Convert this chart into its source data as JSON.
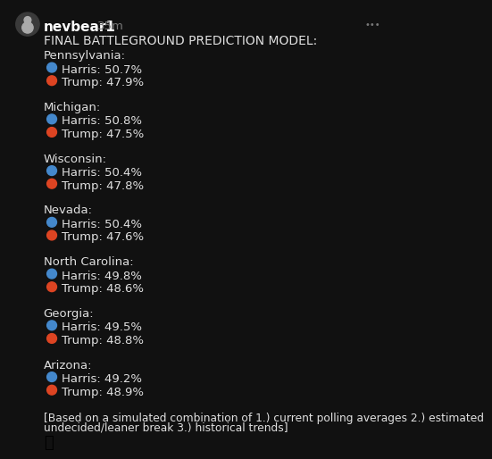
{
  "bg_color": "#111111",
  "text_color": "#e0e0e0",
  "username": "nevbear1",
  "time": "35m",
  "title": "FINAL BATTLEGROUND PREDICTION MODEL:",
  "states": [
    {
      "name": "Pennsylvania:",
      "harris": 50.7,
      "trump": 47.9
    },
    {
      "name": "Michigan:",
      "harris": 50.8,
      "trump": 47.5
    },
    {
      "name": "Wisconsin:",
      "harris": 50.4,
      "trump": 47.8
    },
    {
      "name": "Nevada:",
      "harris": 50.4,
      "trump": 47.6
    },
    {
      "name": "North Carolina:",
      "harris": 49.8,
      "trump": 48.6
    },
    {
      "name": "Georgia:",
      "harris": 49.5,
      "trump": 48.8
    },
    {
      "name": "Arizona:",
      "harris": 49.2,
      "trump": 48.9
    }
  ],
  "harris_color": "#4488cc",
  "trump_color": "#dd4422",
  "footer_line1": "[Based on a simulated combination of 1.) current polling averages 2.) estimated",
  "footer_line2": "undecided/leaner break 3.) historical trends]",
  "emoji": "⏳",
  "avatar_color": "#3a3a3a",
  "dots_color": "#777777",
  "username_color": "#ffffff",
  "time_color": "#777777",
  "font_size_title": 10.0,
  "font_size_state": 9.5,
  "font_size_data": 9.5,
  "font_size_footer": 8.8,
  "font_size_username": 11.0,
  "font_size_time": 9.5
}
